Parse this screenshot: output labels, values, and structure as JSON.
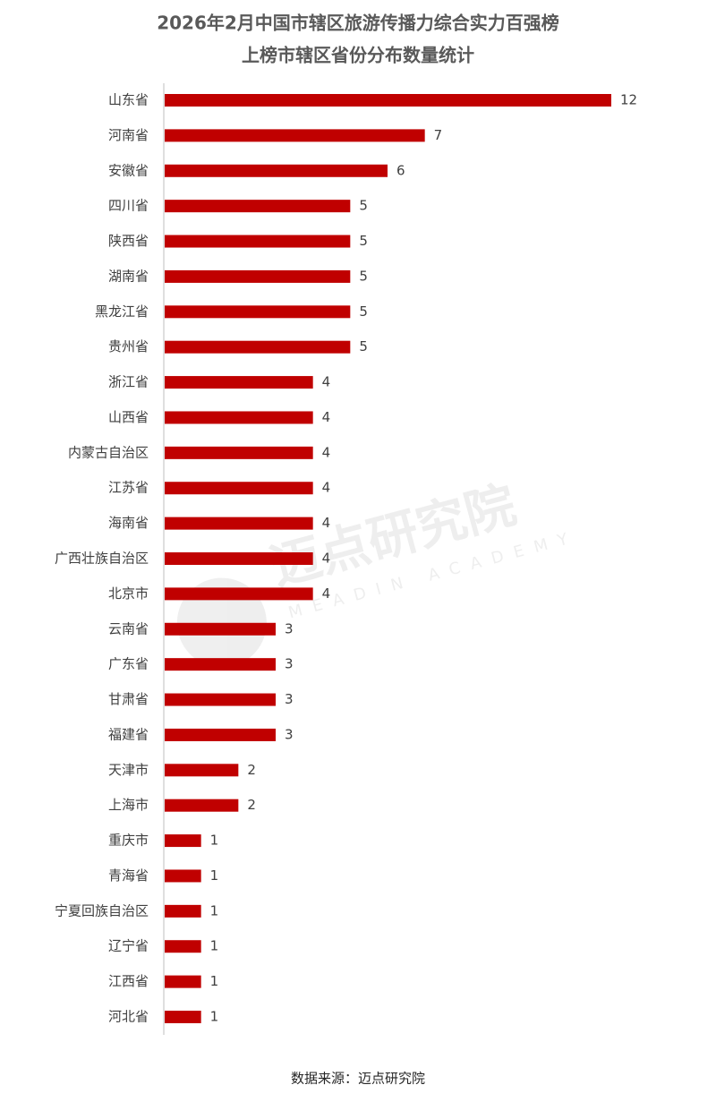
{
  "chart_data": {
    "type": "bar",
    "orientation": "horizontal",
    "title": "2026年2月中国市辖区旅游传播力综合实力百强榜",
    "subtitle": "上榜市辖区省份分布数量统计",
    "categories": [
      "山东省",
      "河南省",
      "安徽省",
      "四川省",
      "陕西省",
      "湖南省",
      "黑龙江省",
      "贵州省",
      "浙江省",
      "山西省",
      "内蒙古自治区",
      "江苏省",
      "海南省",
      "广西壮族自治区",
      "北京市",
      "云南省",
      "广东省",
      "甘肃省",
      "福建省",
      "天津市",
      "上海市",
      "重庆市",
      "青海省",
      "宁夏回族自治区",
      "辽宁省",
      "江西省",
      "河北省"
    ],
    "values": [
      12,
      7,
      6,
      5,
      5,
      5,
      5,
      5,
      4,
      4,
      4,
      4,
      4,
      4,
      4,
      3,
      3,
      3,
      3,
      2,
      2,
      1,
      1,
      1,
      1,
      1,
      1
    ],
    "color": "#c00000",
    "watermark": "迈点研究院",
    "watermark_sub": "MEADIN ACADEMY",
    "source": "数据来源：迈点研究院"
  }
}
